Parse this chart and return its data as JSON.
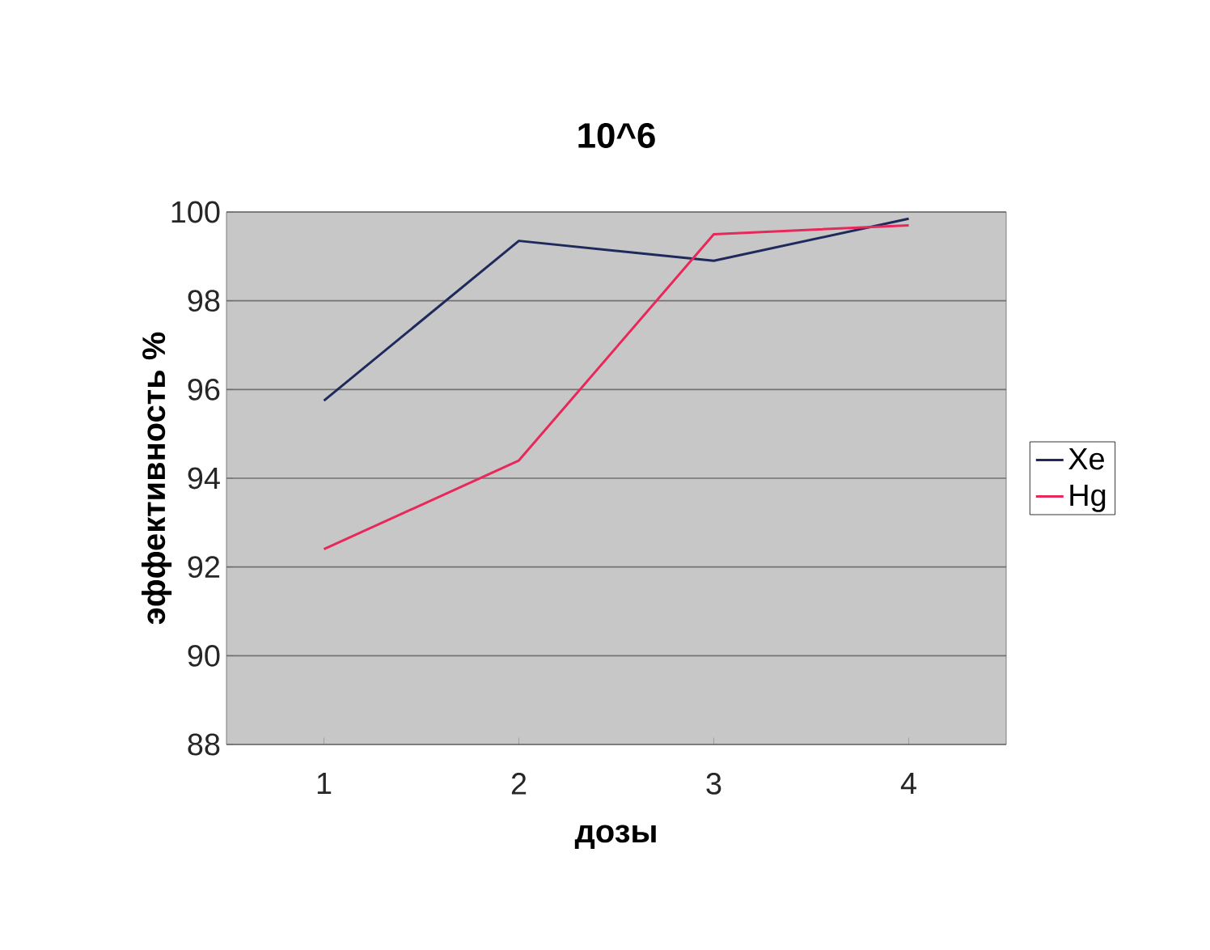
{
  "chart_data": {
    "type": "line",
    "title": "10^6",
    "xlabel": "дозы",
    "ylabel": "эффективность %",
    "categories": [
      "1",
      "2",
      "3",
      "4"
    ],
    "series": [
      {
        "name": "Xe",
        "color": "#1f2a5c",
        "values": [
          95.75,
          99.35,
          98.9,
          99.85
        ]
      },
      {
        "name": "Hg",
        "color": "#e8285a",
        "values": [
          92.4,
          94.4,
          99.5,
          99.7
        ]
      }
    ],
    "ylim": [
      88,
      100
    ],
    "yticks": [
      88,
      90,
      92,
      94,
      96,
      98,
      100
    ],
    "grid": "y",
    "legend": "right"
  }
}
